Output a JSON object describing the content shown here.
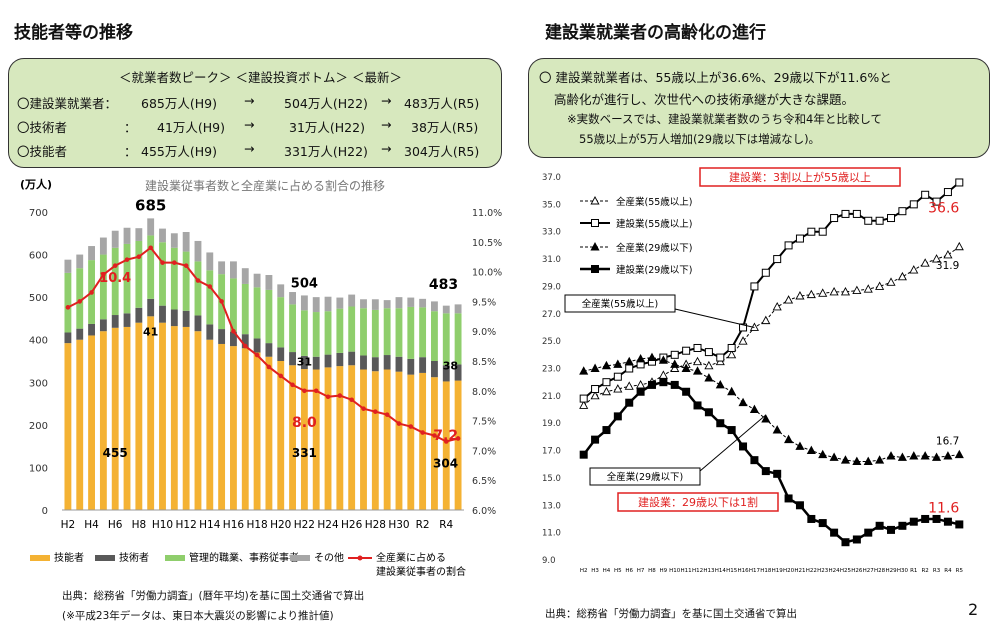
{
  "left": {
    "title": "技能者等の推移",
    "summary": {
      "header": "＜就業者数ピーク＞ ＜建設投資ボトム＞ ＜最新＞",
      "rows": [
        {
          "label": "〇建設業就業者：",
          "peak": "685万人(H9)",
          "bottom": "504万人(H22)",
          "latest": "483万人(R5)"
        },
        {
          "label": "〇技術者",
          "peak": "41万人(H9)",
          "bottom": "31万人(H22)",
          "latest": "38万人(R5)"
        },
        {
          "label": "〇技能者",
          "peak": "455万人(H9)",
          "bottom": "331万人(H22)",
          "latest": "304万人(R5)"
        }
      ],
      "colon": "：",
      "arrow": "→"
    },
    "source": "出典：総務省「労働力調査」(暦年平均)を基に国土交通省で算出",
    "footnote": "(※平成23年データは、東日本大震災の影響により推計値)"
  },
  "right": {
    "title": "建設業就業者の高齢化の進行",
    "summary": {
      "line1": "〇 建設業就業者は、55歳以上が36.6%、29歳以下が11.6%と",
      "line2": "高齢化が進行し、次世代への技術承継が大きな課題。",
      "line3": "※実数ベースでは、建設業就業者数のうち令和4年と比較して",
      "line4": "55歳以上が5万人増加(29歳以下は増減なし)。"
    },
    "source": "出典：総務省「労働力調査」を基に国土交通省で算出"
  },
  "page_number": "2",
  "chart_data": [
    {
      "type": "bar",
      "stacked": true,
      "title": "建設業従事者数と全産業に占める割合の推移",
      "ylabel": "(万人)",
      "ylim": [
        0,
        700
      ],
      "yticks": [
        "0",
        "100",
        "200",
        "300",
        "400",
        "500",
        "600",
        "700"
      ],
      "y2lim": [
        6.0,
        11.0
      ],
      "y2ticks": [
        "6.0%",
        "6.5%",
        "7.0%",
        "7.5%",
        "8.0%",
        "8.5%",
        "9.0%",
        "9.5%",
        "10.0%",
        "10.5%",
        "11.0%"
      ],
      "categories": [
        "H2",
        "H3",
        "H4",
        "H5",
        "H6",
        "H7",
        "H8",
        "H9",
        "H10",
        "H11",
        "H12",
        "H13",
        "H14",
        "H15",
        "H16",
        "H17",
        "H18",
        "H19",
        "H20",
        "H21",
        "H22",
        "H23",
        "H24",
        "H25",
        "H26",
        "H27",
        "H28",
        "H29",
        "H30",
        "R1",
        "R2",
        "R3",
        "R4",
        "R5"
      ],
      "xtick_labels": [
        "H2",
        "H4",
        "H6",
        "H8",
        "H10",
        "H12",
        "H14",
        "H16",
        "H18",
        "H20",
        "H22",
        "H24",
        "H26",
        "H28",
        "H30",
        "R2",
        "R4"
      ],
      "series": [
        {
          "name": "技能者",
          "color": "#f4b233",
          "values": [
            392,
            400,
            410,
            420,
            428,
            430,
            440,
            455,
            440,
            432,
            430,
            420,
            400,
            390,
            385,
            380,
            370,
            360,
            350,
            340,
            331,
            330,
            335,
            338,
            340,
            330,
            326,
            330,
            325,
            318,
            322,
            312,
            302,
            304
          ]
        },
        {
          "name": "技術者",
          "color": "#595959",
          "values": [
            25,
            26,
            27,
            28,
            30,
            32,
            35,
            41,
            40,
            39,
            38,
            37,
            36,
            35,
            34,
            33,
            33,
            32,
            32,
            31,
            31,
            30,
            30,
            31,
            32,
            33,
            33,
            34,
            35,
            37,
            37,
            38,
            38,
            38
          ]
        },
        {
          "name": "管理的職業、事務従事者",
          "color": "#8fce6c",
          "values": [
            140,
            142,
            150,
            152,
            158,
            163,
            157,
            149,
            149,
            145,
            139,
            127,
            127,
            129,
            125,
            118,
            120,
            125,
            118,
            112,
            107,
            105,
            102,
            104,
            106,
            111,
            111,
            110,
            114,
            122,
            117,
            117,
            122,
            120
          ]
        },
        {
          "name": "その他",
          "color": "#a6a6a6",
          "values": [
            31,
            32,
            33,
            40,
            40,
            38,
            30,
            40,
            32,
            34,
            46,
            48,
            42,
            30,
            40,
            37,
            32,
            35,
            30,
            29,
            35,
            35,
            34,
            26,
            28,
            21,
            25,
            19,
            26,
            22,
            20,
            23,
            18,
            21
          ]
        }
      ],
      "line": {
        "name": "全産業に占める建設業従事者の割合",
        "color": "#e02020",
        "values": [
          9.4,
          9.5,
          9.65,
          9.95,
          10.1,
          10.2,
          10.25,
          10.4,
          10.15,
          10.15,
          10.1,
          9.85,
          9.75,
          9.5,
          9.0,
          8.75,
          8.6,
          8.4,
          8.25,
          8.1,
          8.0,
          8.0,
          7.9,
          7.92,
          7.85,
          7.7,
          7.65,
          7.6,
          7.45,
          7.4,
          7.3,
          7.25,
          7.15,
          7.2
        ]
      },
      "annotations": [
        "685",
        "504",
        "483",
        "41",
        "31",
        "38",
        "455",
        "331",
        "304",
        "10.4",
        "8.0",
        "7.2"
      ],
      "legend": [
        "技能者",
        "技術者",
        "管理的職業、事務従事者",
        "その他",
        "全産業に占める",
        "建設業従事者の割合"
      ]
    },
    {
      "type": "line",
      "ylim": [
        9.0,
        37.0
      ],
      "yticks": [
        "9.0",
        "11.0",
        "13.0",
        "15.0",
        "17.0",
        "19.0",
        "21.0",
        "23.0",
        "25.0",
        "27.0",
        "29.0",
        "31.0",
        "33.0",
        "35.0",
        "37.0"
      ],
      "categories": [
        "H2",
        "H3",
        "H4",
        "H5",
        "H6",
        "H7",
        "H8",
        "H9",
        "H10",
        "H11",
        "H12",
        "H13",
        "H14",
        "H15",
        "H16",
        "H17",
        "H18",
        "H19",
        "H20",
        "H21",
        "H22",
        "H23",
        "H24",
        "H25",
        "H26",
        "H27",
        "H28",
        "H29",
        "H30",
        "R1",
        "R2",
        "R3",
        "R4",
        "R5"
      ],
      "series": [
        {
          "name": "全産業(55歳以上)",
          "style": "dash-open-triangle",
          "values": [
            20.3,
            21.0,
            21.3,
            21.5,
            21.7,
            21.8,
            22.0,
            22.5,
            23.0,
            23.3,
            23.5,
            23.2,
            23.5,
            24.0,
            25.0,
            26.0,
            26.5,
            27.5,
            28.0,
            28.3,
            28.4,
            28.5,
            28.6,
            28.6,
            28.7,
            28.8,
            29.0,
            29.3,
            29.7,
            30.2,
            30.7,
            31.0,
            31.3,
            31.9
          ]
        },
        {
          "name": "建設業(55歳以上)",
          "style": "solid-open-square",
          "values": [
            20.8,
            21.5,
            22.0,
            22.4,
            23.0,
            23.3,
            23.5,
            23.8,
            24.0,
            24.3,
            24.5,
            24.2,
            23.8,
            24.5,
            26.0,
            29.0,
            30.0,
            31.0,
            32.0,
            32.5,
            33.0,
            33.0,
            34.0,
            34.3,
            34.3,
            33.8,
            33.8,
            34.0,
            34.5,
            35.0,
            35.7,
            35.2,
            35.9,
            36.6
          ]
        },
        {
          "name": "全産業(29歳以下)",
          "style": "dash-filled-triangle",
          "values": [
            22.8,
            23.0,
            23.2,
            23.3,
            23.5,
            23.7,
            23.8,
            23.6,
            23.3,
            23.0,
            22.8,
            22.3,
            21.8,
            21.3,
            20.5,
            20.0,
            19.3,
            18.5,
            17.8,
            17.3,
            17.0,
            16.7,
            16.5,
            16.3,
            16.2,
            16.2,
            16.3,
            16.6,
            16.5,
            16.6,
            16.6,
            16.5,
            16.6,
            16.7
          ]
        },
        {
          "name": "建設業(29歳以下)",
          "style": "solid-filled-square",
          "values": [
            16.7,
            17.8,
            18.5,
            19.5,
            20.5,
            21.3,
            21.8,
            22.0,
            21.8,
            21.3,
            20.3,
            19.8,
            19.0,
            18.5,
            17.3,
            16.3,
            15.5,
            15.3,
            13.5,
            13.0,
            12.0,
            11.7,
            11.0,
            10.3,
            10.5,
            11.0,
            11.5,
            11.2,
            11.5,
            11.8,
            12.0,
            12.0,
            11.8,
            11.6
          ]
        }
      ],
      "xtick_labels": [
        "H2",
        "H3",
        "H4",
        "H5",
        "H6",
        "H7",
        "H8",
        "H9",
        "H10",
        "H11",
        "H12",
        "H13",
        "H14",
        "H15",
        "H16",
        "H17",
        "H18",
        "H19",
        "H20",
        "H21",
        "H22",
        "H23",
        "H24",
        "H25",
        "H26",
        "H27",
        "H28",
        "H29",
        "H30",
        "R1",
        "R2",
        "R3",
        "R4",
        "R5"
      ],
      "legend": [
        "全産業(55歳以上)",
        "建設業(55歳以上)",
        "全産業(29歳以下)",
        "建設業(29歳以下)"
      ],
      "callouts": {
        "top": "建設業：3割以上が55歳以上",
        "bottom": "建設業：29歳以下は1割",
        "label_55": "全産業(55歳以上)",
        "label_29": "全産業(29歳以下)"
      },
      "end_labels": {
        "con55": "36.6",
        "all55": "31.9",
        "all29": "16.7",
        "con29": "11.6"
      }
    }
  ]
}
